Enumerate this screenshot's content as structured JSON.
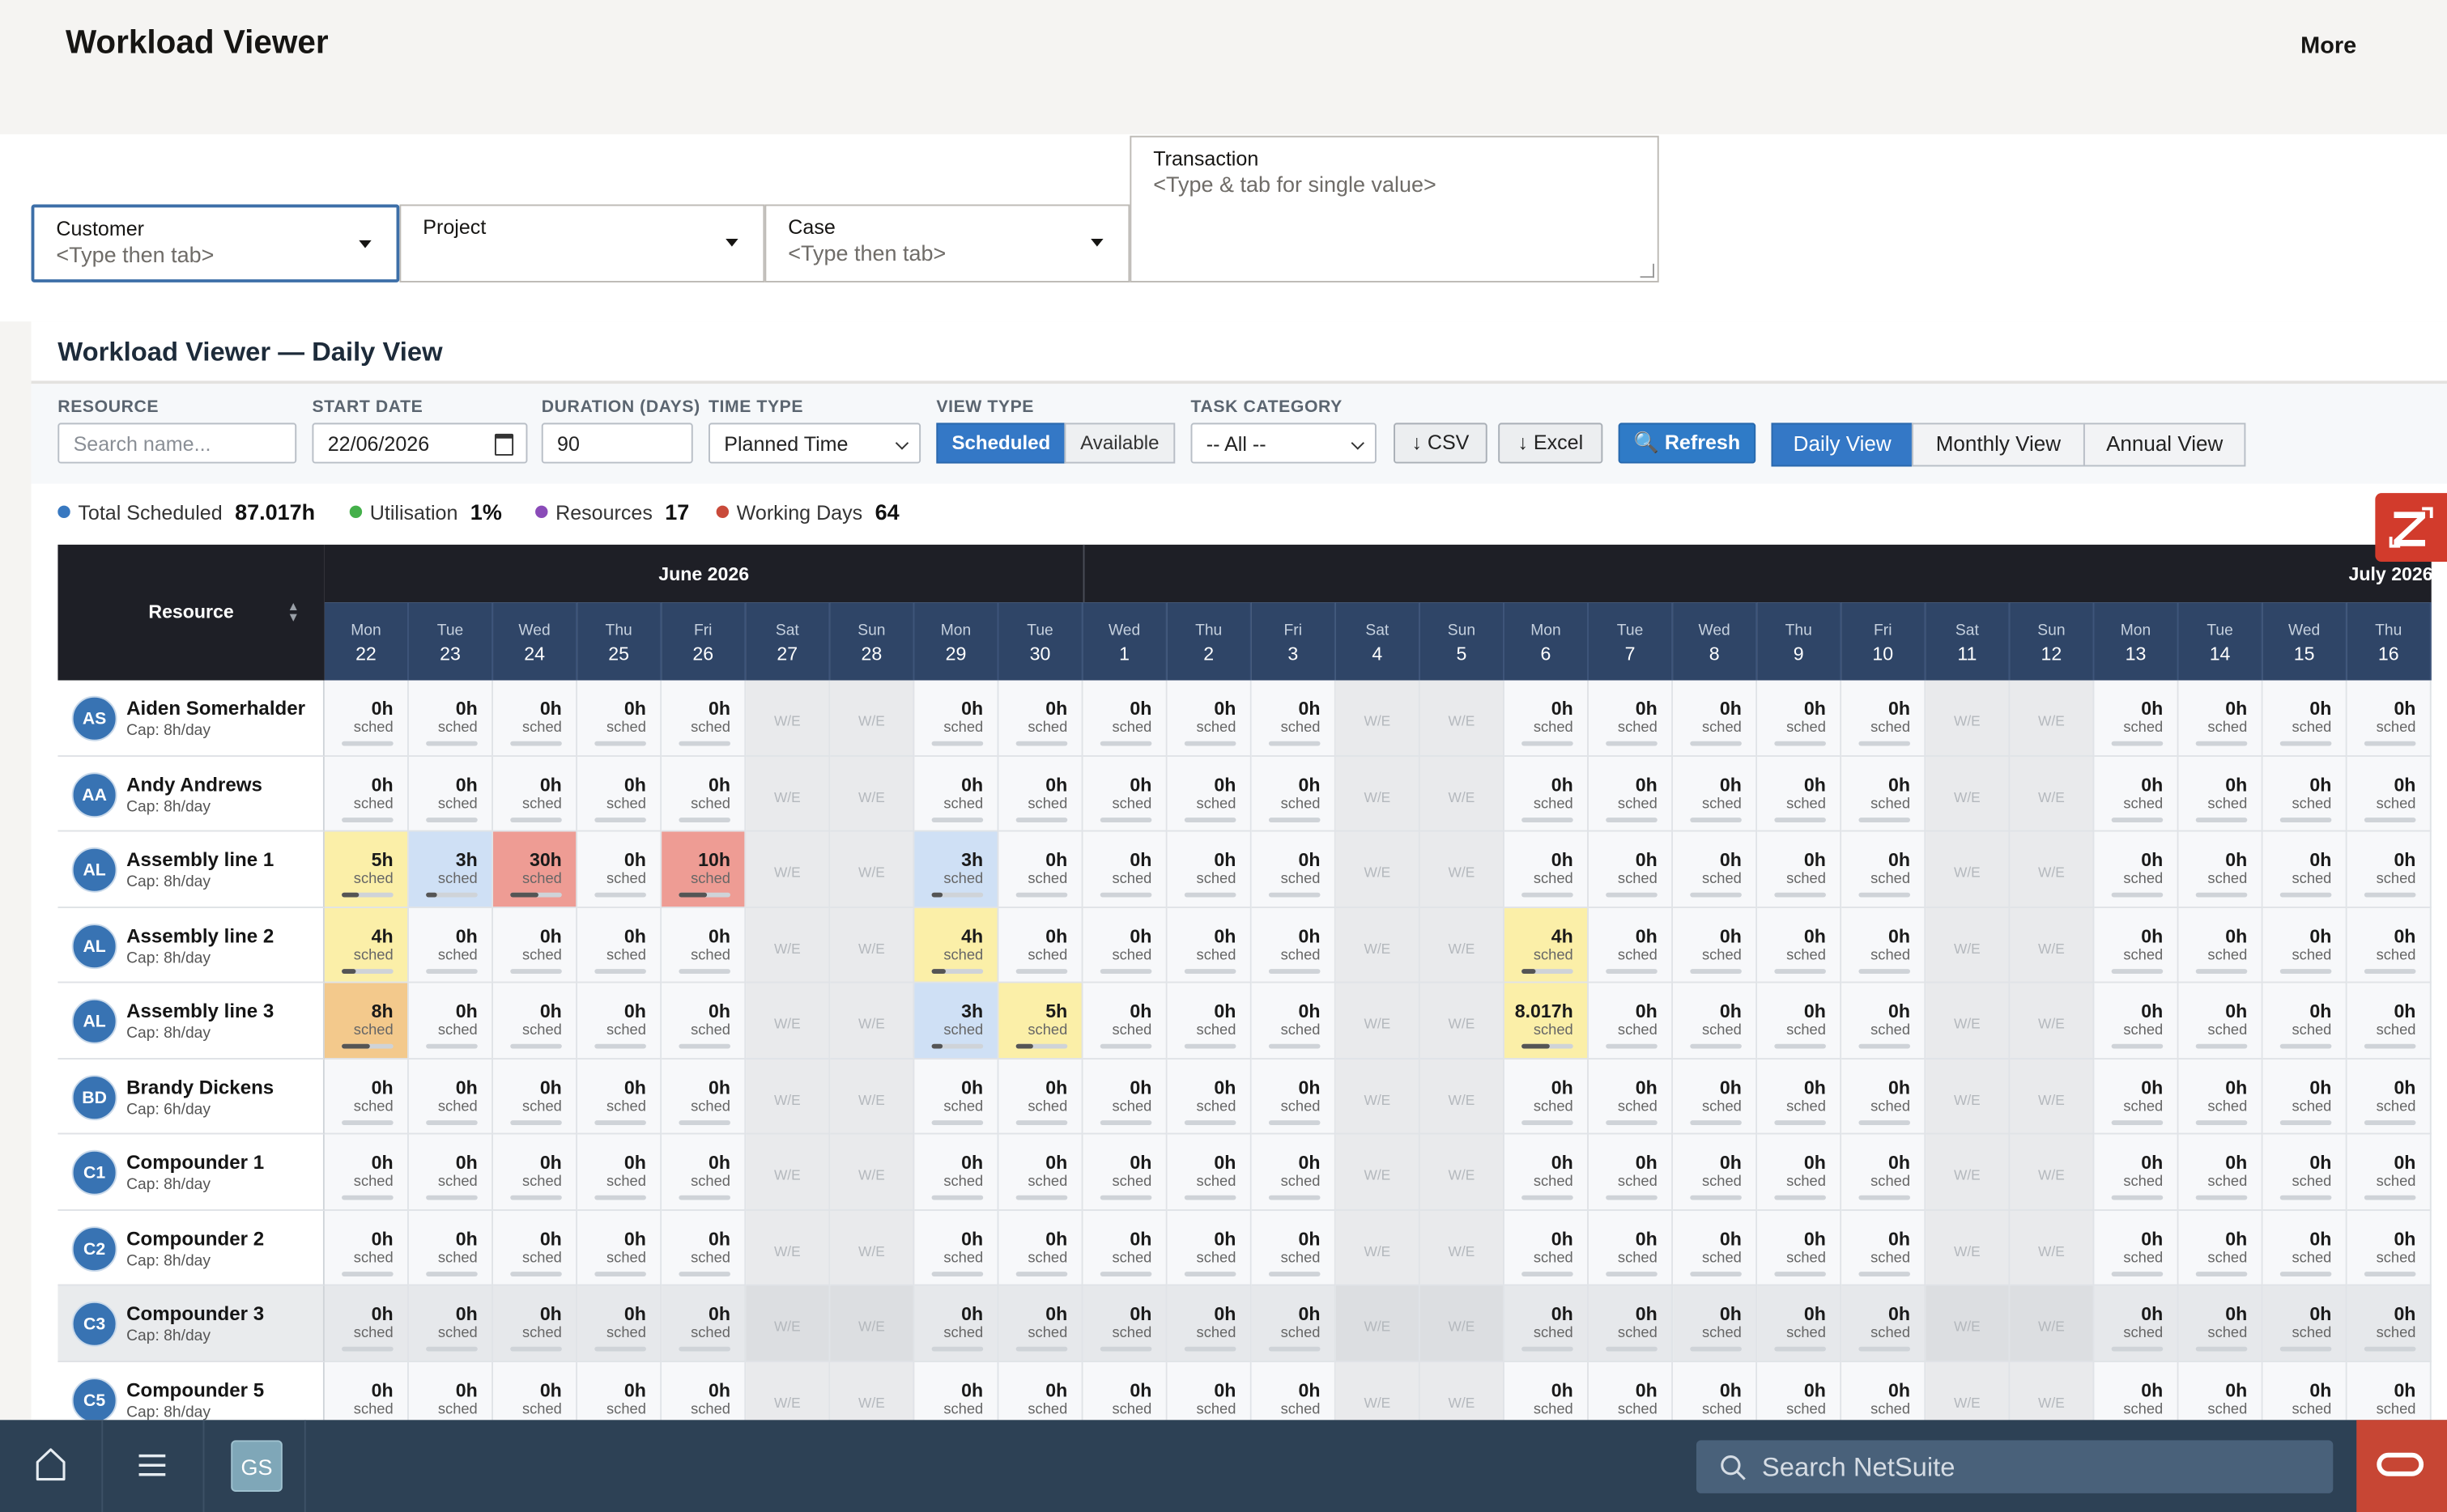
{
  "app": {
    "title": "Workload Viewer",
    "more_label": "More"
  },
  "filters": {
    "customer": {
      "label": "Customer",
      "placeholder": "<Type then tab>"
    },
    "project": {
      "label": "Project",
      "placeholder": ""
    },
    "case": {
      "label": "Case",
      "placeholder": "<Type then tab>"
    },
    "transaction": {
      "label": "Transaction",
      "placeholder": "<Type & tab for single value>"
    }
  },
  "panel": {
    "title": "Workload Viewer — Daily View"
  },
  "toolbar": {
    "resource_label": "RESOURCE",
    "resource_placeholder": "Search name...",
    "start_date_label": "START DATE",
    "start_date_value": "22/06/2026",
    "duration_label": "DURATION (DAYS)",
    "duration_value": "90",
    "time_type_label": "TIME TYPE",
    "time_type_value": "Planned Time",
    "view_type_label": "VIEW TYPE",
    "view_scheduled": "Scheduled",
    "view_available": "Available",
    "task_category_label": "TASK CATEGORY",
    "task_category_value": "-- All --",
    "csv_label": "↓ CSV",
    "excel_label": "↓ Excel",
    "refresh_label": "🔍 Refresh",
    "tabs": [
      "Daily View",
      "Monthly View",
      "Annual View"
    ]
  },
  "stats": [
    {
      "label": "Total Scheduled",
      "value": "87.017h",
      "color": "#3878c0"
    },
    {
      "label": "Utilisation",
      "value": "1%",
      "color": "#44b04a"
    },
    {
      "label": "Resources",
      "value": "17",
      "color": "#8a4bb8"
    },
    {
      "label": "Working Days",
      "value": "64",
      "color": "#c94a3a"
    }
  ],
  "grid": {
    "resource_header": "Resource",
    "months": [
      "June 2026",
      "July 2026"
    ],
    "weekend_text": "W/E",
    "sched_text": "sched",
    "days": [
      {
        "dow": "Mon",
        "day": "22"
      },
      {
        "dow": "Tue",
        "day": "23"
      },
      {
        "dow": "Wed",
        "day": "24"
      },
      {
        "dow": "Thu",
        "day": "25"
      },
      {
        "dow": "Fri",
        "day": "26"
      },
      {
        "dow": "Sat",
        "day": "27"
      },
      {
        "dow": "Sun",
        "day": "28"
      },
      {
        "dow": "Mon",
        "day": "29"
      },
      {
        "dow": "Tue",
        "day": "30"
      },
      {
        "dow": "Wed",
        "day": "1"
      },
      {
        "dow": "Thu",
        "day": "2"
      },
      {
        "dow": "Fri",
        "day": "3"
      },
      {
        "dow": "Sat",
        "day": "4"
      },
      {
        "dow": "Sun",
        "day": "5"
      },
      {
        "dow": "Mon",
        "day": "6"
      },
      {
        "dow": "Tue",
        "day": "7"
      },
      {
        "dow": "Wed",
        "day": "8"
      },
      {
        "dow": "Thu",
        "day": "9"
      },
      {
        "dow": "Fri",
        "day": "10"
      },
      {
        "dow": "Sat",
        "day": "11"
      },
      {
        "dow": "Sun",
        "day": "12"
      },
      {
        "dow": "Mon",
        "day": "13"
      },
      {
        "dow": "Tue",
        "day": "14"
      },
      {
        "dow": "Wed",
        "day": "15"
      },
      {
        "dow": "Thu",
        "day": "16"
      }
    ],
    "weekend_indices": [
      5,
      6,
      12,
      13,
      19,
      20
    ],
    "rows": [
      {
        "initials": "AS",
        "name": "Aiden Somerhalder",
        "cap": "Cap: 8h/day",
        "hours": {}
      },
      {
        "initials": "AA",
        "name": "Andy Andrews",
        "cap": "Cap: 8h/day",
        "hours": {}
      },
      {
        "initials": "AL",
        "name": "Assembly line 1",
        "cap": "Cap: 8h/day",
        "hours": {
          "0": "5h",
          "1": "3h",
          "2": "30h",
          "4": "10h",
          "7": "3h"
        }
      },
      {
        "initials": "AL",
        "name": "Assembly line 2",
        "cap": "Cap: 8h/day",
        "hours": {
          "0": "4h",
          "7": "4h",
          "14": "4h"
        }
      },
      {
        "initials": "AL",
        "name": "Assembly line 3",
        "cap": "Cap: 8h/day",
        "hours": {
          "0": "8h",
          "7": "3h",
          "8": "5h",
          "14": "8.017h"
        }
      },
      {
        "initials": "BD",
        "name": "Brandy Dickens",
        "cap": "Cap: 6h/day",
        "hours": {}
      },
      {
        "initials": "C1",
        "name": "Compounder 1",
        "cap": "Cap: 8h/day",
        "hours": {}
      },
      {
        "initials": "C2",
        "name": "Compounder 2",
        "cap": "Cap: 8h/day",
        "hours": {}
      },
      {
        "initials": "C3",
        "name": "Compounder 3",
        "cap": "Cap: 8h/day",
        "hours": {},
        "highlight": true
      },
      {
        "initials": "C5",
        "name": "Compounder 5",
        "cap": "Cap: 8h/day",
        "hours": {}
      }
    ]
  },
  "bottom": {
    "avatar": "GS",
    "search_placeholder": "Search NetSuite"
  }
}
